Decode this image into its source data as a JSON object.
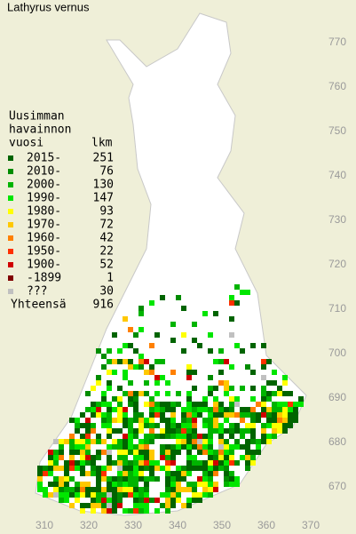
{
  "title": "Lathyrus vernus",
  "legend": {
    "header": [
      "Uusimman",
      "havainnon",
      "vuosi"
    ],
    "count_header": "lkm",
    "rows": [
      {
        "label": "2015-",
        "count": 251,
        "color": "#006400"
      },
      {
        "label": "2010-",
        "count": 76,
        "color": "#008c00"
      },
      {
        "label": "2000-",
        "count": 130,
        "color": "#00b400"
      },
      {
        "label": "1990-",
        "count": 147,
        "color": "#00e600"
      },
      {
        "label": "1980-",
        "count": 93,
        "color": "#ffff00"
      },
      {
        "label": "1970-",
        "count": 72,
        "color": "#ffc800"
      },
      {
        "label": "1960-",
        "count": 42,
        "color": "#ff8000"
      },
      {
        "label": "1950-",
        "count": 22,
        "color": "#ff3000"
      },
      {
        "label": "1900-",
        "count": 52,
        "color": "#d00000"
      },
      {
        "label": "-1899",
        "count": 1,
        "color": "#800000"
      },
      {
        "label": "???",
        "count": 30,
        "color": "#c0c0c0"
      }
    ],
    "total_label": "Yhteensä",
    "total": 916
  },
  "x_axis": [
    "310",
    "320",
    "330",
    "340",
    "350",
    "360",
    "370"
  ],
  "y_axis": [
    "770",
    "760",
    "750",
    "740",
    "730",
    "720",
    "710",
    "700",
    "690",
    "680",
    "670"
  ]
}
